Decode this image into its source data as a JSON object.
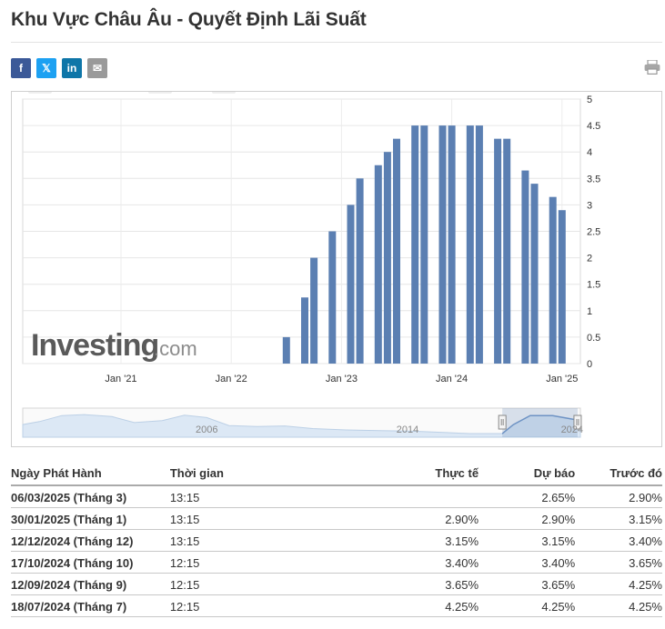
{
  "page_title": "Khu Vực Châu Âu - Quyết Định Lãi Suất",
  "share": [
    {
      "icon": "facebook-icon",
      "glyph": "f",
      "color": "#3b5998"
    },
    {
      "icon": "twitter-x-icon",
      "glyph": "𝕏",
      "color": "#1da1f2"
    },
    {
      "icon": "linkedin-icon",
      "glyph": "in",
      "color": "#0e76a8"
    },
    {
      "icon": "email-icon",
      "glyph": "✉",
      "color": "#9a9a9a"
    }
  ],
  "print_icon": "printer-icon",
  "chart_data": {
    "type": "bar",
    "title": "",
    "xlabel": "",
    "ylabel": "",
    "ylim": [
      0,
      5
    ],
    "y_ticks": [
      "0",
      "0.5",
      "1",
      "1.5",
      "2",
      "2.5",
      "3",
      "3.5",
      "4",
      "4.5",
      "5"
    ],
    "x_tick_labels": [
      "Jan '21",
      "Jan '22",
      "Jan '23",
      "Jan '24",
      "Jan '25"
    ],
    "grid": true,
    "color": "#5b7fb2",
    "categories": [
      "Jul '22",
      "Sep '22",
      "Oct '22",
      "Dec '22",
      "Feb '23",
      "Mar '23",
      "May '23",
      "Jun '23",
      "Jul '23",
      "Sep '23",
      "Oct '23",
      "Dec '23",
      "Jan '24",
      "Mar '24",
      "Apr '24",
      "Jun '24",
      "Jul '24",
      "Sep '24",
      "Oct '24",
      "Dec '24",
      "Jan '25"
    ],
    "values": [
      0.5,
      1.25,
      2.0,
      2.5,
      3.0,
      3.5,
      3.75,
      4.0,
      4.25,
      4.5,
      4.5,
      4.5,
      4.5,
      4.5,
      4.5,
      4.25,
      4.25,
      3.65,
      3.4,
      3.15,
      2.9
    ],
    "watermark": "Investing.com",
    "navigator": {
      "labels": [
        "2006",
        "2014",
        "2024"
      ],
      "fill": "#dce8f5",
      "line": "#6e93c4"
    }
  },
  "table": {
    "headers": {
      "date": "Ngày Phát Hành",
      "time": "Thời gian",
      "actual": "Thực tế",
      "forecast": "Dự báo",
      "previous": "Trước đó"
    },
    "rows": [
      {
        "date": "06/03/2025 (Tháng 3)",
        "time": "13:15",
        "actual": "",
        "forecast": "2.65%",
        "previous": "2.90%"
      },
      {
        "date": "30/01/2025 (Tháng 1)",
        "time": "13:15",
        "actual": "2.90%",
        "forecast": "2.90%",
        "previous": "3.15%"
      },
      {
        "date": "12/12/2024 (Tháng 12)",
        "time": "13:15",
        "actual": "3.15%",
        "forecast": "3.15%",
        "previous": "3.40%"
      },
      {
        "date": "17/10/2024 (Tháng 10)",
        "time": "12:15",
        "actual": "3.40%",
        "forecast": "3.40%",
        "previous": "3.65%"
      },
      {
        "date": "12/09/2024 (Tháng 9)",
        "time": "12:15",
        "actual": "3.65%",
        "forecast": "3.65%",
        "previous": "4.25%"
      },
      {
        "date": "18/07/2024 (Tháng 7)",
        "time": "12:15",
        "actual": "4.25%",
        "forecast": "4.25%",
        "previous": "4.25%"
      }
    ]
  }
}
